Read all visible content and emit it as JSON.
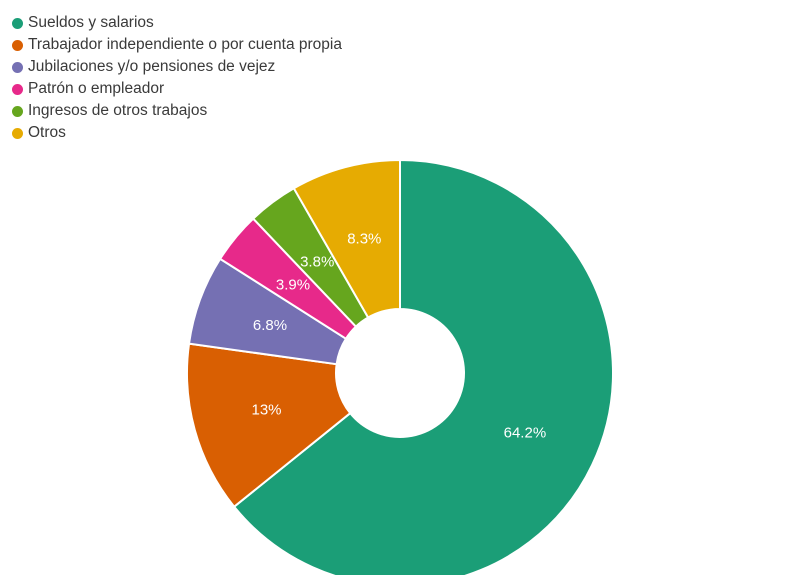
{
  "chart_data": {
    "type": "pie",
    "donut": true,
    "legend_position": "top-left",
    "slices": [
      {
        "name": "Sueldos y salarios",
        "value": 64.2,
        "label": "64.2%",
        "color": "#1b9e77"
      },
      {
        "name": "Trabajador independiente o por cuenta propia",
        "value": 13,
        "label": "13%",
        "color": "#d95f02"
      },
      {
        "name": "Jubilaciones y/o pensiones de vejez",
        "value": 6.8,
        "label": "6.8%",
        "color": "#7570b3"
      },
      {
        "name": "Patrón o empleador",
        "value": 3.9,
        "label": "3.9%",
        "color": "#e7298a"
      },
      {
        "name": "Ingresos de otros trabajos",
        "value": 3.8,
        "label": "3.8%",
        "color": "#66a61e"
      },
      {
        "name": "Otros",
        "value": 8.3,
        "label": "8.3%",
        "color": "#e6ab02"
      }
    ]
  }
}
